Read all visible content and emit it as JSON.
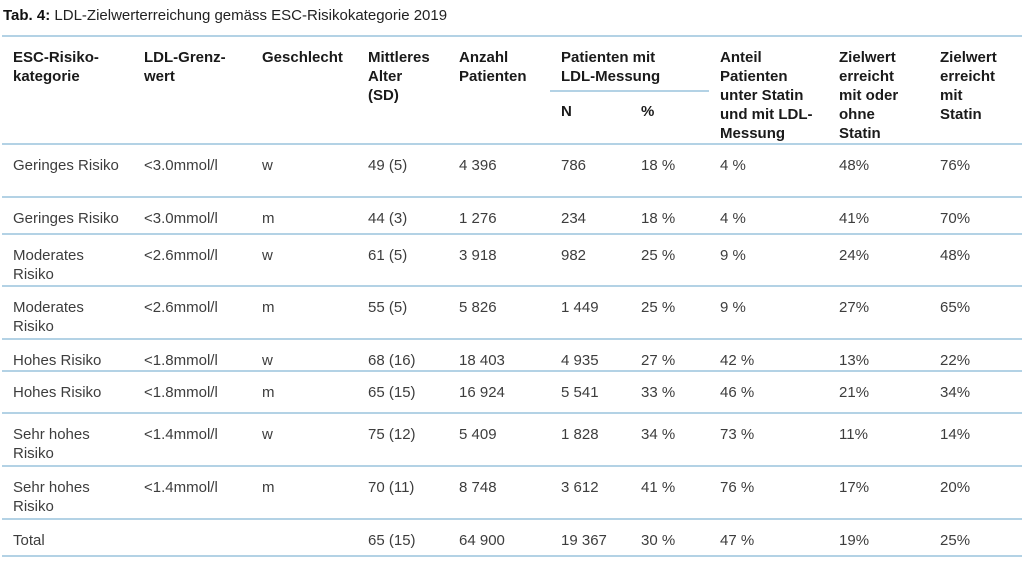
{
  "title": {
    "tag": "Tab. 4:",
    "text": "LDL-Zielwerterreichung gemäss ESC-Risikokategorie 2019"
  },
  "colors": {
    "rule": "#b3d2e5",
    "header_text": "#1a1a1a",
    "body_text": "#3d3d3d"
  },
  "table": {
    "headers": {
      "esc_risk_category": "ESC-Risiko-\nkategorie",
      "ldl_limit": "LDL-Grenz-\nwert",
      "sex": "Geschlecht",
      "mean_age_sd": "Mittleres\nAlter\n(SD)",
      "n_patients": "Anzahl\nPatienten",
      "group_ldl_measured": "Patienten mit\nLDL-Messung",
      "sub_n": "N",
      "sub_pct": "%",
      "share_statin_ldl": "Anteil\nPatienten\nunter Statin\nund mit LDL-\nMessung",
      "target_with_or_without_statin": "Zielwert\nerreicht\nmit oder\nohne\nStatin",
      "target_with_statin": "Zielwert\nerreicht\nmit\nStatin"
    },
    "rows": [
      [
        "Geringes Risiko",
        "<3.0mmol/l",
        "w",
        "49 (5)",
        "4 396",
        "786",
        "18 %",
        "4 %",
        "48%",
        "76%"
      ],
      [
        "Geringes Risiko",
        "<3.0mmol/l",
        "m",
        "44 (3)",
        "1 276",
        "234",
        "18 %",
        "4 %",
        "41%",
        "70%"
      ],
      [
        "Moderates\nRisiko",
        "<2.6mmol/l",
        "w",
        "61 (5)",
        "3 918",
        "982",
        "25 %",
        "9 %",
        "24%",
        "48%"
      ],
      [
        "Moderates\nRisiko",
        "<2.6mmol/l",
        "m",
        "55 (5)",
        "5 826",
        "1 449",
        "25 %",
        "9 %",
        "27%",
        "65%"
      ],
      [
        "Hohes Risiko",
        "<1.8mmol/l",
        "w",
        "68 (16)",
        "18 403",
        "4 935",
        "27 %",
        "42 %",
        "13%",
        "22%"
      ],
      [
        "Hohes Risiko",
        "<1.8mmol/l",
        "m",
        "65 (15)",
        "16 924",
        "5 541",
        "33 %",
        "46 %",
        "21%",
        "34%"
      ],
      [
        "Sehr hohes\nRisiko",
        "<1.4mmol/l",
        "w",
        "75 (12)",
        "5 409",
        "1 828",
        "34 %",
        "73 %",
        "11%",
        "14%"
      ],
      [
        "Sehr hohes\nRisiko",
        "<1.4mmol/l",
        "m",
        "70 (11)",
        "8 748",
        "3 612",
        "41 %",
        "76 %",
        "17%",
        "20%"
      ],
      [
        "Total",
        "",
        "",
        "65 (15)",
        "64 900",
        "19 367",
        "30 %",
        "47 %",
        "19%",
        "25%"
      ]
    ]
  }
}
